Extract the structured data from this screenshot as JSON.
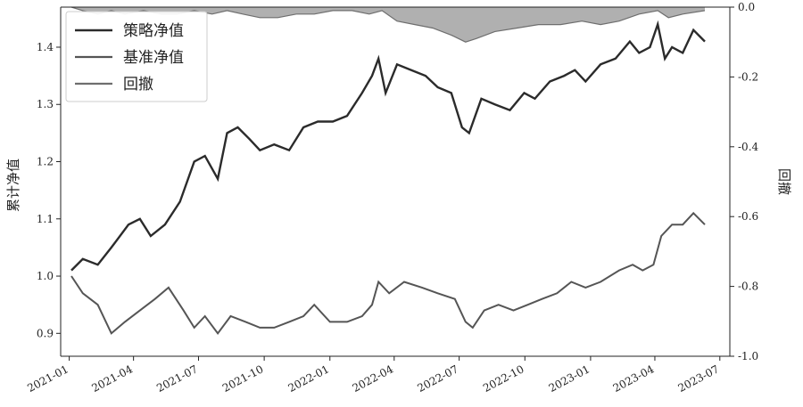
{
  "chart_data": {
    "type": "line",
    "title": "",
    "xlabel": "",
    "ylabel": "累计净值",
    "y2label": "回撤",
    "legend": {
      "placement": "top-left",
      "entries": [
        "策略净值",
        "基准净值",
        "回撤"
      ]
    },
    "x_ticks": [
      "2021-01",
      "2021-04",
      "2021-07",
      "2021-10",
      "2022-01",
      "2022-04",
      "2022-07",
      "2022-10",
      "2023-01",
      "2023-04",
      "2023-07"
    ],
    "y_ticks": [
      "0.9",
      "1.0",
      "1.1",
      "1.2",
      "1.3",
      "1.4"
    ],
    "y2_ticks": [
      "0.0",
      "-0.2",
      "-0.4",
      "-0.6",
      "-0.8",
      "-1.0"
    ],
    "ylim": [
      0.86,
      1.47
    ],
    "y2lim": [
      -1.0,
      0.0
    ],
    "xlim": [
      "2020-12-20",
      "2023-07-15"
    ],
    "grid": false,
    "colors": {
      "strategy": "#2b2b2b",
      "benchmark": "#555555",
      "drawdown_line": "#6e6e6e",
      "drawdown_fill": "#b0b0b0"
    },
    "series": [
      {
        "name": "策略净值",
        "axis": "left",
        "x": [
          "2021-01-04",
          "2021-01-20",
          "2021-02-10",
          "2021-03-01",
          "2021-03-25",
          "2021-04-10",
          "2021-04-25",
          "2021-05-15",
          "2021-06-05",
          "2021-06-25",
          "2021-07-10",
          "2021-07-28",
          "2021-08-10",
          "2021-08-25",
          "2021-09-10",
          "2021-09-25",
          "2021-10-15",
          "2021-11-05",
          "2021-11-25",
          "2021-12-15",
          "2022-01-05",
          "2022-01-25",
          "2022-02-15",
          "2022-03-01",
          "2022-03-10",
          "2022-03-20",
          "2022-04-05",
          "2022-04-25",
          "2022-05-15",
          "2022-06-01",
          "2022-06-20",
          "2022-07-05",
          "2022-07-15",
          "2022-08-01",
          "2022-08-20",
          "2022-09-10",
          "2022-09-30",
          "2022-10-15",
          "2022-11-05",
          "2022-11-25",
          "2022-12-10",
          "2022-12-25",
          "2023-01-15",
          "2023-02-05",
          "2023-02-25",
          "2023-03-10",
          "2023-03-25",
          "2023-04-05",
          "2023-04-15",
          "2023-04-25",
          "2023-05-10",
          "2023-05-25",
          "2023-06-10"
        ],
        "values": [
          1.01,
          1.03,
          1.02,
          1.05,
          1.09,
          1.1,
          1.07,
          1.09,
          1.13,
          1.2,
          1.21,
          1.17,
          1.25,
          1.26,
          1.24,
          1.22,
          1.23,
          1.22,
          1.26,
          1.27,
          1.27,
          1.28,
          1.32,
          1.35,
          1.38,
          1.32,
          1.37,
          1.36,
          1.35,
          1.33,
          1.32,
          1.26,
          1.25,
          1.31,
          1.3,
          1.29,
          1.32,
          1.31,
          1.34,
          1.35,
          1.36,
          1.34,
          1.37,
          1.38,
          1.41,
          1.39,
          1.4,
          1.44,
          1.38,
          1.4,
          1.39,
          1.43,
          1.41
        ]
      },
      {
        "name": "基准净值",
        "axis": "left",
        "x": [
          "2021-01-04",
          "2021-01-20",
          "2021-02-10",
          "2021-03-01",
          "2021-03-20",
          "2021-04-10",
          "2021-05-01",
          "2021-05-20",
          "2021-06-10",
          "2021-06-25",
          "2021-07-10",
          "2021-07-28",
          "2021-08-15",
          "2021-09-05",
          "2021-09-25",
          "2021-10-15",
          "2021-11-05",
          "2021-11-25",
          "2021-12-10",
          "2022-01-01",
          "2022-01-25",
          "2022-02-15",
          "2022-03-01",
          "2022-03-10",
          "2022-03-25",
          "2022-04-15",
          "2022-05-10",
          "2022-06-01",
          "2022-06-25",
          "2022-07-10",
          "2022-07-20",
          "2022-08-05",
          "2022-08-25",
          "2022-09-15",
          "2022-10-05",
          "2022-10-25",
          "2022-11-15",
          "2022-12-05",
          "2022-12-25",
          "2023-01-15",
          "2023-02-10",
          "2023-03-01",
          "2023-03-15",
          "2023-03-30",
          "2023-04-10",
          "2023-04-25",
          "2023-05-10",
          "2023-05-25",
          "2023-06-10"
        ],
        "values": [
          1.0,
          0.97,
          0.95,
          0.9,
          0.92,
          0.94,
          0.96,
          0.98,
          0.94,
          0.91,
          0.93,
          0.9,
          0.93,
          0.92,
          0.91,
          0.91,
          0.92,
          0.93,
          0.95,
          0.92,
          0.92,
          0.93,
          0.95,
          0.99,
          0.97,
          0.99,
          0.98,
          0.97,
          0.96,
          0.92,
          0.91,
          0.94,
          0.95,
          0.94,
          0.95,
          0.96,
          0.97,
          0.99,
          0.98,
          0.99,
          1.01,
          1.02,
          1.01,
          1.02,
          1.07,
          1.09,
          1.09,
          1.11,
          1.09
        ]
      },
      {
        "name": "回撤",
        "axis": "right",
        "x": [
          "2021-01-04",
          "2021-01-20",
          "2021-02-10",
          "2021-03-01",
          "2021-03-20",
          "2021-04-15",
          "2021-05-10",
          "2021-06-01",
          "2021-06-25",
          "2021-07-20",
          "2021-08-10",
          "2021-09-01",
          "2021-09-25",
          "2021-10-20",
          "2021-11-15",
          "2021-12-10",
          "2022-01-05",
          "2022-02-01",
          "2022-02-25",
          "2022-03-15",
          "2022-04-05",
          "2022-04-30",
          "2022-05-25",
          "2022-06-20",
          "2022-07-10",
          "2022-07-25",
          "2022-08-20",
          "2022-09-20",
          "2022-10-20",
          "2022-11-20",
          "2022-12-20",
          "2023-01-15",
          "2023-02-10",
          "2023-03-10",
          "2023-04-05",
          "2023-04-20",
          "2023-05-10",
          "2023-06-10"
        ],
        "values": [
          0.0,
          -0.01,
          -0.02,
          -0.01,
          -0.02,
          -0.01,
          -0.02,
          -0.02,
          -0.01,
          -0.02,
          -0.01,
          -0.02,
          -0.03,
          -0.03,
          -0.02,
          -0.02,
          -0.01,
          -0.01,
          -0.02,
          -0.01,
          -0.04,
          -0.05,
          -0.06,
          -0.08,
          -0.1,
          -0.09,
          -0.07,
          -0.06,
          -0.05,
          -0.05,
          -0.04,
          -0.05,
          -0.04,
          -0.02,
          -0.01,
          -0.03,
          -0.02,
          -0.01
        ]
      }
    ]
  }
}
